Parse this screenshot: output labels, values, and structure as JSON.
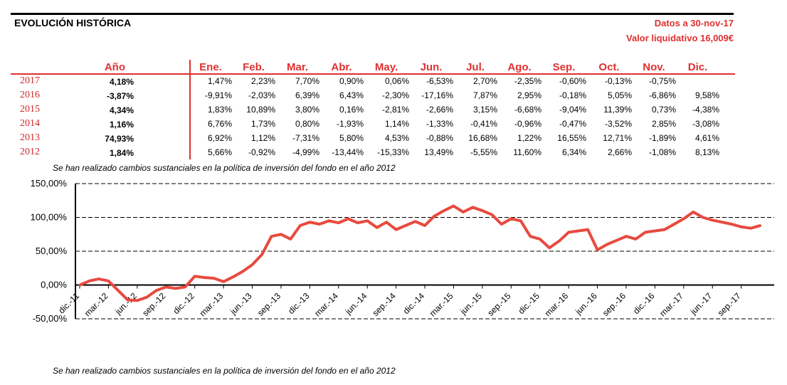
{
  "header": {
    "title": "EVOLUCIÓN HISTÓRICA",
    "date_text": "Datos a 30-nov-17",
    "nav_text": "Valor liquidativo 16,009€"
  },
  "table": {
    "year_header": "Año",
    "month_headers": [
      "Ene.",
      "Feb.",
      "Mar.",
      "Abr.",
      "May.",
      "Jun.",
      "Jul.",
      "Ago.",
      "Sep.",
      "Oct.",
      "Nov.",
      "Dic."
    ],
    "rows": [
      {
        "year": "2017",
        "annual": "4,18%",
        "months": [
          "1,47%",
          "2,23%",
          "7,70%",
          "0,90%",
          "0,06%",
          "-6,53%",
          "2,70%",
          "-2,35%",
          "-0,60%",
          "-0,13%",
          "-0,75%",
          ""
        ]
      },
      {
        "year": "2016",
        "annual": "-3,87%",
        "months": [
          "-9,91%",
          "-2,03%",
          "6,39%",
          "6,43%",
          "-2,30%",
          "-17,16%",
          "7,87%",
          "2,95%",
          "-0,18%",
          "5,05%",
          "-6,86%",
          "9,58%"
        ]
      },
      {
        "year": "2015",
        "annual": "4,34%",
        "months": [
          "1,83%",
          "10,89%",
          "3,80%",
          "0,16%",
          "-2,81%",
          "-2,66%",
          "3,15%",
          "-6,68%",
          "-9,04%",
          "11,39%",
          "0,73%",
          "-4,38%"
        ]
      },
      {
        "year": "2014",
        "annual": "1,16%",
        "months": [
          "6,76%",
          "1,73%",
          "0,80%",
          "-1,93%",
          "1,14%",
          "-1,33%",
          "-0,41%",
          "-0,96%",
          "-0,47%",
          "-3,52%",
          "2,85%",
          "-3,08%"
        ]
      },
      {
        "year": "2013",
        "annual": "74,93%",
        "months": [
          "6,92%",
          "1,12%",
          "-7,31%",
          "5,80%",
          "4,53%",
          "-0,88%",
          "16,68%",
          "1,22%",
          "16,55%",
          "12,71%",
          "-1,89%",
          "4,61%"
        ]
      },
      {
        "year": "2012",
        "annual": "1,84%",
        "months": [
          "5,66%",
          "-0,92%",
          "-4,99%",
          "-13,44%",
          "-15,33%",
          "13,49%",
          "-5,55%",
          "11,60%",
          "6,34%",
          "2,66%",
          "-1,08%",
          "8,13%"
        ]
      }
    ]
  },
  "note_text": "Se han realizado cambios sustanciales en la política de inversión del fondo en el año 2012",
  "colors": {
    "accent": "#e03030",
    "line": "#e84a3f"
  },
  "chart_data": {
    "type": "line",
    "title": "",
    "xlabel": "",
    "ylabel": "",
    "ylim": [
      -50,
      150
    ],
    "y_ticks": [
      "-50,00%",
      "0,00%",
      "50,00%",
      "100,00%",
      "150,00%"
    ],
    "y_tick_values": [
      -50,
      0,
      50,
      100,
      150
    ],
    "grid": true,
    "x_ticks": [
      "dic.-11",
      "mar.-12",
      "jun.-12",
      "sep.-12",
      "dic.-12",
      "mar.-13",
      "jun.-13",
      "sep.-13",
      "dic.-13",
      "mar.-14",
      "jun.-14",
      "sep.-14",
      "dic.-14",
      "mar.-15",
      "jun.-15",
      "sep.-15",
      "dic.-15",
      "mar.-16",
      "jun.-16",
      "sep.-16",
      "dic.-16",
      "mar.-17",
      "jun.-17",
      "sep.-17"
    ],
    "series": [
      {
        "x": [
          "dic.-11",
          "ene.-12",
          "feb.-12",
          "mar.-12",
          "abr.-12",
          "may.-12",
          "jun.-12",
          "jul.-12",
          "ago.-12",
          "sep.-12",
          "oct.-12",
          "nov.-12",
          "dic.-12",
          "ene.-13",
          "feb.-13",
          "mar.-13",
          "abr.-13",
          "may.-13",
          "jun.-13",
          "jul.-13",
          "ago.-13",
          "sep.-13",
          "oct.-13",
          "nov.-13",
          "dic.-13",
          "ene.-14",
          "feb.-14",
          "mar.-14",
          "abr.-14",
          "may.-14",
          "jun.-14",
          "jul.-14",
          "ago.-14",
          "sep.-14",
          "oct.-14",
          "nov.-14",
          "dic.-14",
          "ene.-15",
          "feb.-15",
          "mar.-15",
          "abr.-15",
          "may.-15",
          "jun.-15",
          "jul.-15",
          "ago.-15",
          "sep.-15",
          "oct.-15",
          "nov.-15",
          "dic.-15",
          "ene.-16",
          "feb.-16",
          "mar.-16",
          "abr.-16",
          "may.-16",
          "jun.-16",
          "jul.-16",
          "ago.-16",
          "sep.-16",
          "oct.-16",
          "nov.-16",
          "dic.-16",
          "ene.-17",
          "feb.-17",
          "mar.-17",
          "abr.-17",
          "may.-17",
          "jun.-17",
          "jul.-17",
          "ago.-17",
          "sep.-17",
          "oct.-17",
          "nov.-17"
        ],
        "values": [
          0,
          6,
          9,
          6,
          -8,
          -22,
          -23,
          -18,
          -8,
          -3,
          -5,
          -3,
          13,
          11,
          10,
          5,
          12,
          20,
          30,
          45,
          72,
          75,
          68,
          88,
          93,
          90,
          95,
          92,
          98,
          92,
          95,
          85,
          93,
          82,
          88,
          94,
          88,
          102,
          110,
          117,
          108,
          115,
          110,
          104,
          90,
          98,
          95,
          72,
          68,
          55,
          65,
          78,
          80,
          82,
          52,
          60,
          66,
          72,
          68,
          78,
          80,
          82,
          90,
          98,
          108,
          100,
          96,
          93,
          90,
          86,
          84,
          88
        ]
      }
    ]
  }
}
